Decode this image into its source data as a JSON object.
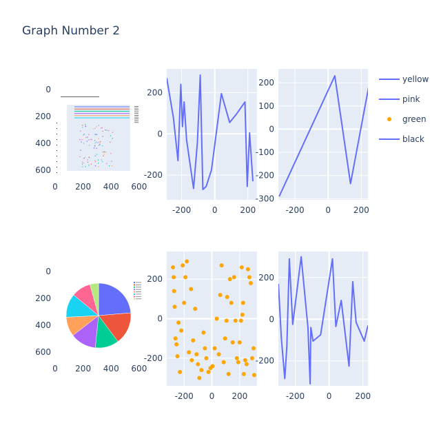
{
  "figure": {
    "title": "Graph Number 2"
  },
  "colors": {
    "plot_bg": "#e5ecf6",
    "grid": "#ffffff",
    "line": "#636efa",
    "marker": "#ffa500",
    "pie": [
      "#636efa",
      "#ef553b",
      "#00cc96",
      "#ab63fa",
      "#ffa15a",
      "#19d3f3",
      "#ff6692",
      "#b6e880"
    ]
  },
  "chart_data": [
    {
      "type": "heatmap",
      "subplot": "image-top-left",
      "content": "embedded image of a small multi-series chart",
      "xticks": [
        0,
        200,
        400,
        600
      ],
      "yticks": [
        0,
        200,
        400,
        600
      ],
      "xlim": [
        0,
        640
      ],
      "ylim": [
        640,
        0
      ]
    },
    {
      "type": "line",
      "subplot": "top-middle",
      "series": [
        {
          "name": "yellow",
          "x": [
            -290,
            -250,
            -222,
            -205,
            -195,
            -185,
            -170,
            -128,
            -105,
            -88,
            -72,
            -52,
            -20,
            40,
            90,
            130,
            182,
            196,
            210,
            230
          ],
          "y": [
            270,
            80,
            -130,
            240,
            35,
            155,
            -30,
            -265,
            -40,
            285,
            -270,
            -255,
            -175,
            195,
            55,
            95,
            155,
            -255,
            5,
            -230
          ]
        }
      ],
      "xticks": [
        -200,
        0,
        200
      ],
      "yticks": [
        -200,
        0,
        200
      ],
      "xlim": [
        -290,
        255
      ],
      "ylim": [
        -320,
        315
      ]
    },
    {
      "type": "line",
      "subplot": "top-right",
      "series": [
        {
          "name": "pink",
          "x": [
            -295,
            40,
            135,
            245
          ],
          "y": [
            -290,
            230,
            -235,
            185
          ]
        }
      ],
      "xticks": [
        -200,
        0,
        200
      ],
      "yticks": [
        -300,
        -200,
        -100,
        0,
        100,
        200
      ],
      "xlim": [
        -300,
        240
      ],
      "ylim": [
        -305,
        260
      ]
    },
    {
      "type": "pie",
      "subplot": "image-bottom-left",
      "content": "embedded image of a pie chart",
      "values": [
        22,
        15,
        11,
        12,
        9,
        11,
        9,
        4
      ],
      "xticks": [
        0,
        200,
        400,
        600
      ],
      "yticks": [
        0,
        200,
        400,
        600
      ],
      "xlim": [
        0,
        640
      ],
      "ylim": [
        640,
        0
      ]
    },
    {
      "type": "scatter",
      "subplot": "bottom-middle",
      "series": [
        {
          "name": "green",
          "x": [
            -280,
            -275,
            -272,
            -268,
            -262,
            -255,
            -248,
            -240,
            -230,
            -220,
            -210,
            -200,
            -190,
            -180,
            -165,
            -150,
            -145,
            -135,
            -120,
            -110,
            -100,
            -90,
            -75,
            -60,
            -50,
            -40,
            -25,
            -10,
            5,
            20,
            35,
            50,
            60,
            70,
            85,
            95,
            105,
            110,
            120,
            130,
            140,
            150,
            160,
            170,
            180,
            190,
            200,
            210,
            215,
            220,
            225,
            230,
            240,
            250,
            260,
            270,
            280,
            290,
            300,
            305
          ],
          "y": [
            260,
            210,
            140,
            60,
            -100,
            -130,
            -190,
            -20,
            -270,
            -60,
            270,
            80,
            210,
            290,
            -170,
            150,
            -210,
            -110,
            50,
            -180,
            -230,
            -300,
            -260,
            -70,
            -150,
            -200,
            -270,
            -250,
            -240,
            -150,
            0,
            -180,
            120,
            270,
            -220,
            -100,
            -10,
            110,
            -280,
            200,
            80,
            -120,
            210,
            -10,
            -200,
            -220,
            -120,
            -10,
            260,
            20,
            80,
            -280,
            -210,
            -230,
            250,
            210,
            180,
            -200,
            -150,
            -285
          ],
          "color": "#ffa500"
        }
      ],
      "xticks": [
        -200,
        0,
        200
      ],
      "yticks": [
        -200,
        0,
        200
      ],
      "xlim": [
        -325,
        325
      ],
      "ylim": [
        -340,
        340
      ]
    },
    {
      "type": "line",
      "subplot": "bottom-right",
      "series": [
        {
          "name": "black",
          "x": [
            -300,
            -282,
            -262,
            -250,
            -235,
            -215,
            -165,
            -125,
            -112,
            -108,
            -95,
            -50,
            20,
            40,
            72,
            118,
            140,
            160,
            208,
            230
          ],
          "y": [
            170,
            -95,
            -285,
            -130,
            290,
            -25,
            300,
            -40,
            -310,
            -40,
            -105,
            -75,
            290,
            -35,
            90,
            -225,
            180,
            -15,
            -105,
            -30
          ]
        }
      ],
      "xticks": [
        -200,
        0,
        200
      ],
      "yticks": [
        -200,
        0,
        200
      ],
      "xlim": [
        -300,
        230
      ],
      "ylim": [
        -320,
        325
      ]
    }
  ],
  "legend": {
    "placement": "top-right",
    "entries": [
      {
        "name": "yellow",
        "symbol": "line"
      },
      {
        "name": "pink",
        "symbol": "line"
      },
      {
        "name": "green",
        "symbol": "marker"
      },
      {
        "name": "black",
        "symbol": "line"
      }
    ]
  }
}
